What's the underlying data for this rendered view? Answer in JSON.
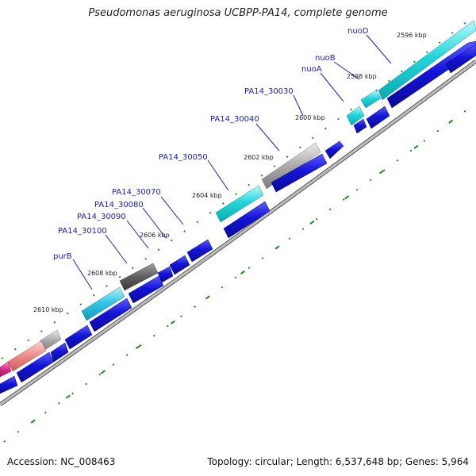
{
  "title": "Pseudomonas aeruginosa UCBPP-PA14, complete genome",
  "footer": {
    "accession": "Accession: NC_008463",
    "summary": "Topology: circular; Length: 6,537,648 bp; Genes: 5,964"
  },
  "colors": {
    "background": "#ffffff",
    "backbone": "#8a8a8a",
    "cds": "#1414d8",
    "gene_label": "#1b1bb3",
    "leader_line": "#1b1bb3",
    "tick": "#1f8a1f",
    "gene_cyan": "#22d6dc",
    "gene_lightcyan": "#33c8e6",
    "gene_grey": "#aaaaaa",
    "gene_darkgrey": "#666666",
    "gene_pink": "#ef8a8a",
    "gene_magenta": "#dd2b8a"
  },
  "position_labels": [
    "2596 kbp",
    "2598 kbp",
    "2600 kbp",
    "2602 kbp",
    "2604 kbp",
    "2606 kbp",
    "2608 kbp",
    "2610 kbp"
  ],
  "gene_labels": [
    "nuoD",
    "nuoB",
    "nuoA",
    "PA14_30030",
    "PA14_30040",
    "PA14_30050",
    "PA14_30070",
    "PA14_30080",
    "PA14_30090",
    "PA14_30100",
    "purB"
  ]
}
